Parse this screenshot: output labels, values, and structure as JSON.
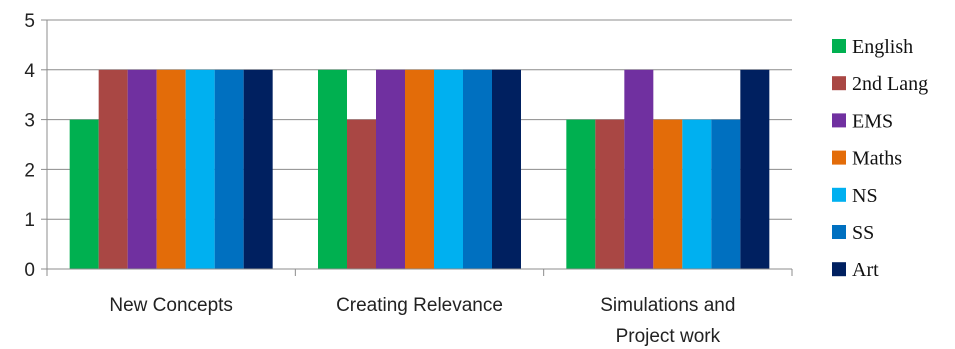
{
  "chart_data": {
    "type": "bar",
    "categories": [
      [
        "New Concepts"
      ],
      [
        "Creating Relevance"
      ],
      [
        "Simulations and",
        "Project work"
      ]
    ],
    "series": [
      {
        "name": "English",
        "color": "#00b050",
        "values": [
          3,
          4,
          3
        ]
      },
      {
        "name": "2nd Lang",
        "color": "#a94744",
        "values": [
          4,
          3,
          3
        ]
      },
      {
        "name": "EMS",
        "color": "#7030a0",
        "values": [
          4,
          4,
          4
        ]
      },
      {
        "name": "Maths",
        "color": "#e36c09",
        "values": [
          4,
          4,
          3
        ]
      },
      {
        "name": "NS",
        "color": "#00b0f0",
        "values": [
          4,
          4,
          3
        ]
      },
      {
        "name": "SS",
        "color": "#0070c0",
        "values": [
          4,
          4,
          3
        ]
      },
      {
        "name": "Art",
        "color": "#002060",
        "values": [
          4,
          4,
          4
        ]
      }
    ],
    "ylim": [
      0,
      5
    ],
    "yticks": [
      0,
      1,
      2,
      3,
      4,
      5
    ],
    "grid": true,
    "legend": "right"
  }
}
